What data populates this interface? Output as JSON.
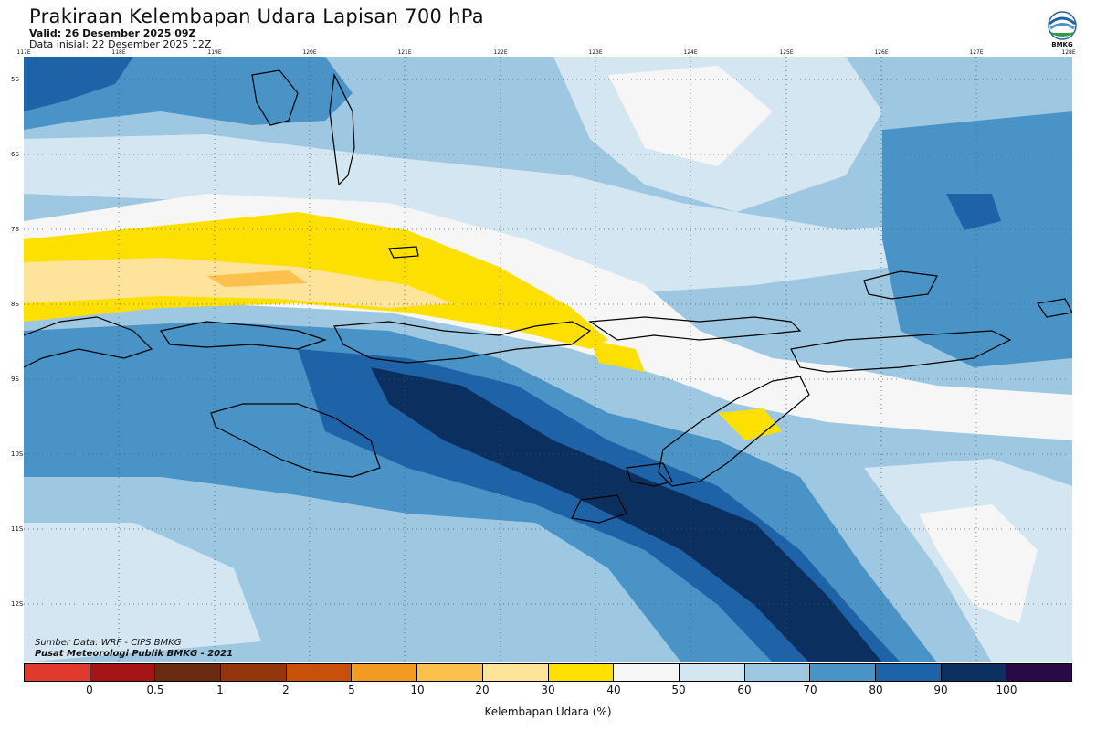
{
  "header": {
    "title": "Prakiraan Kelembapan Udara Lapisan 700 hPa",
    "valid": "Valid: 26 Desember 2025 09Z",
    "initial": "Data inisial: 22 Desember 2025 12Z",
    "logo_text": "BMKG"
  },
  "axes": {
    "lon_labels": [
      "117E",
      "118E",
      "119E",
      "120E",
      "121E",
      "122E",
      "123E",
      "124E",
      "125E",
      "126E",
      "127E",
      "128E"
    ],
    "lat_labels": [
      "5S",
      "6S",
      "7S",
      "8S",
      "9S",
      "10S",
      "11S",
      "12S"
    ]
  },
  "map": {
    "land_labels": []
  },
  "credits": {
    "source": "Sumber Data: WRF - CIPS BMKG",
    "center": "Pusat Meteorologi Publik BMKG - 2021"
  },
  "legend": {
    "bins": [
      "#e03a2e",
      "#a51414",
      "#6b2a12",
      "#93360c",
      "#c9500a",
      "#f39a22",
      "#fcc04c",
      "#fde49a",
      "#fde000",
      "#f6f6f6",
      "#d4e6f1",
      "#9ec8e2",
      "#4a93c6",
      "#1e62a8",
      "#0b305f",
      "#2a0a46"
    ],
    "labels": [
      "0",
      "0.5",
      "1",
      "2",
      "5",
      "10",
      "20",
      "30",
      "40",
      "50",
      "60",
      "70",
      "80",
      "90",
      "100"
    ],
    "unit": "Kelembapan Udara (%)"
  },
  "colors": {
    "c50": "#f6f6f6",
    "c60": "#d4e6f1",
    "c70": "#9ec8e2",
    "c80": "#4a93c6",
    "c90": "#1e62a8",
    "c100": "#0b305f",
    "c30": "#fde49a",
    "c40": "#fde000",
    "c20": "#fcc04c"
  }
}
